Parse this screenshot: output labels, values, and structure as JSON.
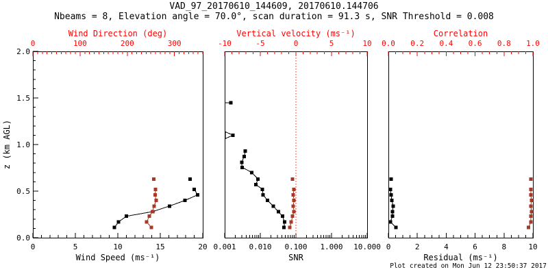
{
  "header": {
    "title": "VAD_97_20170610_144609, 20170610.144706",
    "subtitle": "Nbeams = 8, Elevation angle = 70.0°, scan duration = 91.3 s, SNR Threshold = 0.008"
  },
  "footer": {
    "created": "Plot created on Mon Jun 12 23:50:37 2017"
  },
  "colors": {
    "black": "#000000",
    "axis_red": "#ff0000",
    "marker_red": "#a63a28",
    "zero_line_red": "#d42a1a",
    "background": "#ffffff"
  },
  "chart_data": {
    "type": "line",
    "description": "VAD lidar wind retrieval: three vertical-profile panels sharing a z (km AGL) axis; black series use bottom axes, dark-red series use top (red) axes",
    "y_axis": {
      "label": "z (km AGL)",
      "min": 0,
      "max": 2,
      "minor_step": 0.1,
      "majors": [
        {
          "v": 0,
          "label": "0.0"
        },
        {
          "v": 0.5,
          "label": "0.5"
        },
        {
          "v": 1,
          "label": "1.0"
        },
        {
          "v": 1.5,
          "label": "1.5"
        },
        {
          "v": 2,
          "label": "2.0"
        }
      ]
    },
    "panels": [
      {
        "name": "wind",
        "bottom_axis": {
          "label": "Wind Speed (ms⁻¹)",
          "scale": "linear",
          "min": 0,
          "max": 20,
          "minor_step": 1,
          "majors": [
            {
              "v": 0,
              "label": "0"
            },
            {
              "v": 5,
              "label": "5"
            },
            {
              "v": 10,
              "label": "10"
            },
            {
              "v": 15,
              "label": "15"
            },
            {
              "v": 20,
              "label": "20"
            }
          ]
        },
        "top_axis": {
          "label": "Wind Direction (deg)",
          "scale": "linear",
          "min": 0,
          "max": 360,
          "minor_step": 10,
          "majors": [
            {
              "v": 0,
              "label": "0"
            },
            {
              "v": 100,
              "label": "100"
            },
            {
              "v": 200,
              "label": "200"
            },
            {
              "v": 300,
              "label": "300"
            }
          ]
        },
        "series": [
          {
            "name": "wind-speed",
            "axis": "bottom",
            "color": "black",
            "points": [
              [
                9.6,
                0.11
              ],
              [
                10.1,
                0.17
              ],
              [
                11.0,
                0.23
              ],
              [
                14.1,
                0.28
              ],
              [
                16.1,
                0.34
              ],
              [
                17.9,
                0.4
              ],
              [
                19.4,
                0.46
              ],
              [
                19.0,
                0.52
              ]
            ],
            "isolated": [
              [
                18.5,
                0.63
              ]
            ]
          },
          {
            "name": "wind-direction",
            "axis": "top",
            "color": "marker_red",
            "points": [
              [
                251,
                0.11
              ],
              [
                241,
                0.17
              ],
              [
                247,
                0.23
              ],
              [
                253,
                0.28
              ],
              [
                257,
                0.34
              ],
              [
                261,
                0.4
              ],
              [
                259,
                0.46
              ],
              [
                260,
                0.52
              ]
            ],
            "isolated": [
              [
                256,
                0.63
              ]
            ]
          }
        ]
      },
      {
        "name": "snr",
        "bottom_axis": {
          "label": "SNR",
          "scale": "log",
          "min": 0.001,
          "max": 10,
          "majors": [
            {
              "v": 0.001,
              "label": "0.001"
            },
            {
              "v": 0.01,
              "label": "0.010"
            },
            {
              "v": 0.1,
              "label": "0.100"
            },
            {
              "v": 1,
              "label": "1.000"
            },
            {
              "v": 10,
              "label": "10.000"
            }
          ]
        },
        "top_axis": {
          "label": "Vertical velocity (ms⁻¹)",
          "scale": "linear",
          "min": -10,
          "max": 10,
          "minor_step": 1,
          "majors": [
            {
              "v": -10,
              "label": "-10"
            },
            {
              "v": -5,
              "label": "-5"
            },
            {
              "v": 0,
              "label": "0"
            },
            {
              "v": 5,
              "label": "5"
            },
            {
              "v": 10,
              "label": "10"
            }
          ]
        },
        "zero_line": {
          "axis": "top",
          "value": 0
        },
        "series": [
          {
            "name": "snr",
            "axis": "bottom",
            "color": "black",
            "points": [
              [
                0.046,
                0.11
              ],
              [
                0.048,
                0.17
              ],
              [
                0.042,
                0.23
              ],
              [
                0.032,
                0.28
              ],
              [
                0.023,
                0.34
              ],
              [
                0.016,
                0.4
              ],
              [
                0.012,
                0.46
              ],
              [
                0.0115,
                0.52
              ],
              [
                0.0075,
                0.57
              ],
              [
                0.0086,
                0.63
              ],
              [
                0.0058,
                0.7
              ],
              [
                0.0031,
                0.755
              ],
              [
                0.003,
                0.81
              ],
              [
                0.0035,
                0.87
              ],
              [
                0.0038,
                0.93
              ]
            ],
            "isolated": [
              [
                0.0017,
                1.1
              ],
              [
                0.0015,
                1.45
              ]
            ],
            "edge_features": [
              {
                "type": "arrow",
                "value": 0.0017,
                "z": 1.1
              },
              {
                "type": "stub",
                "value": 0.0015,
                "z": 1.45
              }
            ]
          },
          {
            "name": "vertical-velocity",
            "axis": "top",
            "color": "marker_red",
            "points": [
              [
                -0.85,
                0.11
              ],
              [
                -0.65,
                0.17
              ],
              [
                -0.46,
                0.23
              ],
              [
                -0.27,
                0.28
              ],
              [
                -0.37,
                0.34
              ],
              [
                -0.27,
                0.4
              ],
              [
                -0.37,
                0.46
              ],
              [
                -0.27,
                0.52
              ]
            ],
            "isolated": [
              [
                -0.46,
                0.63
              ]
            ]
          }
        ]
      },
      {
        "name": "residual",
        "bottom_axis": {
          "label": "Residual (ms⁻¹)",
          "scale": "linear",
          "min": 0,
          "max": 10,
          "minor_step": 0.5,
          "majors": [
            {
              "v": 0,
              "label": "0"
            },
            {
              "v": 2,
              "label": "2"
            },
            {
              "v": 4,
              "label": "4"
            },
            {
              "v": 6,
              "label": "6"
            },
            {
              "v": 8,
              "label": "8"
            },
            {
              "v": 10,
              "label": "10"
            }
          ]
        },
        "top_axis": {
          "label": "Correlation",
          "scale": "linear",
          "min": 0,
          "max": 1,
          "minor_step": 0.05,
          "majors": [
            {
              "v": 0,
              "label": "0.0"
            },
            {
              "v": 0.2,
              "label": "0.2"
            },
            {
              "v": 0.4,
              "label": "0.4"
            },
            {
              "v": 0.6,
              "label": "0.6"
            },
            {
              "v": 0.8,
              "label": "0.8"
            },
            {
              "v": 1,
              "label": "1.0"
            }
          ]
        },
        "series": [
          {
            "name": "residual",
            "axis": "bottom",
            "color": "black",
            "points": [
              [
                0.52,
                0.11
              ],
              [
                0.14,
                0.17
              ],
              [
                0.28,
                0.23
              ],
              [
                0.28,
                0.28
              ],
              [
                0.33,
                0.34
              ],
              [
                0.24,
                0.4
              ],
              [
                0.19,
                0.46
              ],
              [
                0.14,
                0.52
              ]
            ],
            "isolated": [
              [
                0.19,
                0.63
              ]
            ]
          },
          {
            "name": "correlation",
            "axis": "top",
            "color": "marker_red",
            "points": [
              [
                0.97,
                0.11
              ],
              [
                0.985,
                0.17
              ],
              [
                0.985,
                0.23
              ],
              [
                0.99,
                0.28
              ],
              [
                0.985,
                0.34
              ],
              [
                0.99,
                0.4
              ],
              [
                0.985,
                0.46
              ],
              [
                0.985,
                0.52
              ]
            ],
            "isolated": [
              [
                0.985,
                0.63
              ]
            ]
          }
        ]
      }
    ]
  }
}
